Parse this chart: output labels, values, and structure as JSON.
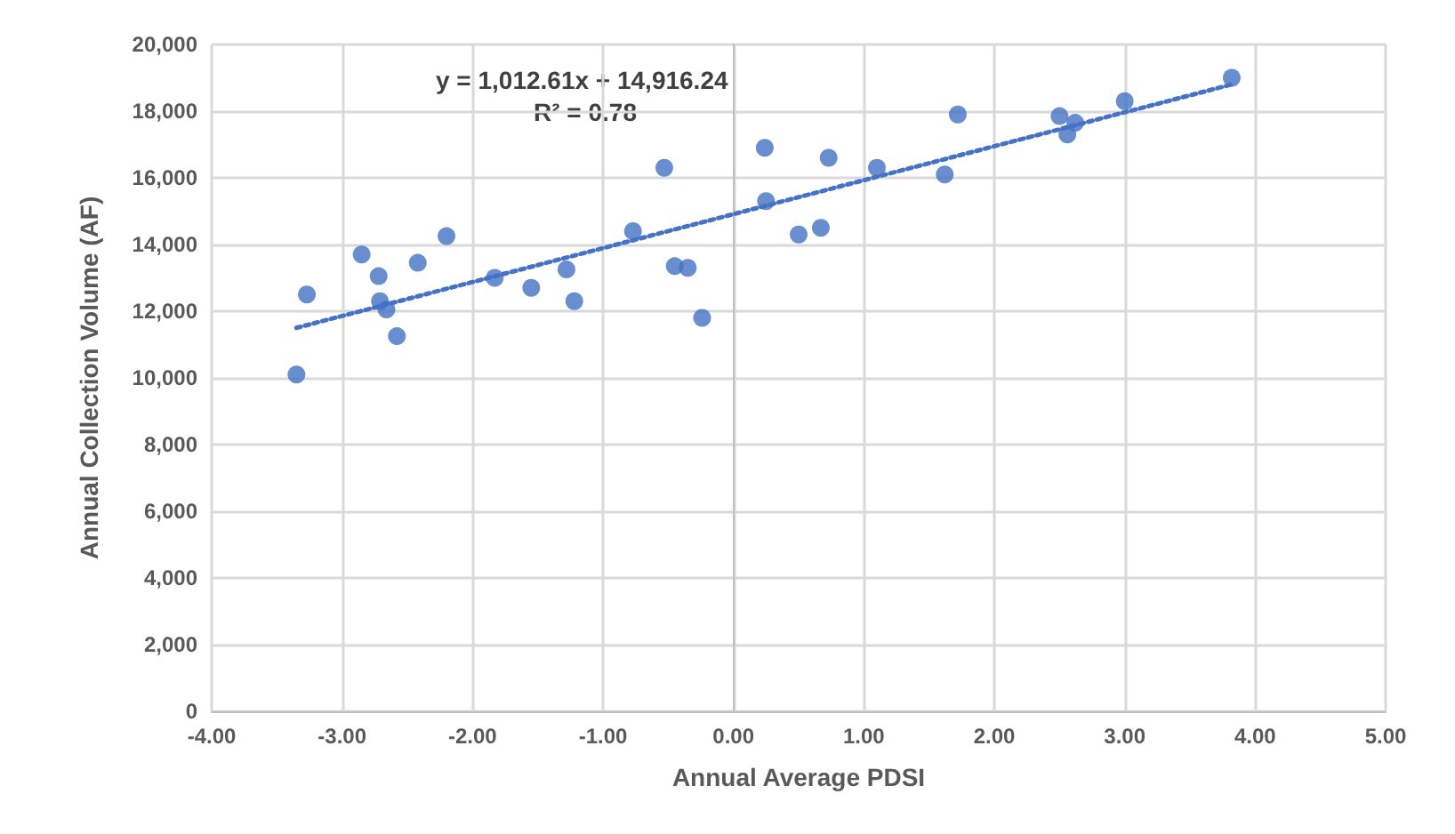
{
  "chart_data": {
    "type": "scatter",
    "xlabel": "Annual Average PDSI",
    "ylabel": "Annual Collection Volume (AF)",
    "annotations": [
      "y = 1,012.61x + 14,916.24",
      "R² = 0.78"
    ],
    "xlim": [
      -4,
      5
    ],
    "xticks": [
      {
        "value": -4,
        "label": "-4.00"
      },
      {
        "value": -3,
        "label": "-3.00"
      },
      {
        "value": -2,
        "label": "-2.00"
      },
      {
        "value": -1,
        "label": "-1.00"
      },
      {
        "value": 0,
        "label": "0.00"
      },
      {
        "value": 1,
        "label": "1.00"
      },
      {
        "value": 2,
        "label": "2.00"
      },
      {
        "value": 3,
        "label": "3.00"
      },
      {
        "value": 4,
        "label": "4.00"
      },
      {
        "value": 5,
        "label": "5.00"
      }
    ],
    "ylim": [
      0,
      20000
    ],
    "yticks": [
      {
        "value": 0,
        "label": "0"
      },
      {
        "value": 2000,
        "label": "2,000"
      },
      {
        "value": 4000,
        "label": "4,000"
      },
      {
        "value": 6000,
        "label": "6,000"
      },
      {
        "value": 8000,
        "label": "8,000"
      },
      {
        "value": 10000,
        "label": "10,000"
      },
      {
        "value": 12000,
        "label": "12,000"
      },
      {
        "value": 14000,
        "label": "14,000"
      },
      {
        "value": 16000,
        "label": "16,000"
      },
      {
        "value": 18000,
        "label": "18,000"
      },
      {
        "value": 20000,
        "label": "20,000"
      }
    ],
    "grid": true,
    "marker": "circle",
    "series": [
      {
        "color": "#4472c4",
        "x": [
          -3.35,
          -3.27,
          -2.85,
          -2.72,
          -2.71,
          -2.66,
          -2.58,
          -2.42,
          -2.2,
          -1.83,
          -1.55,
          -1.28,
          -1.22,
          -0.77,
          -0.53,
          -0.45,
          -0.35,
          -0.24,
          0.24,
          0.25,
          0.5,
          0.67,
          0.73,
          1.1,
          1.62,
          1.72,
          2.5,
          2.56,
          2.62,
          3.0,
          3.82
        ],
        "values": [
          10100,
          12500,
          13700,
          13050,
          12300,
          12050,
          11250,
          13450,
          14250,
          13000,
          12700,
          13250,
          12300,
          14400,
          16300,
          13350,
          13300,
          11800,
          16900,
          15300,
          14300,
          14500,
          16600,
          16300,
          16100,
          17900,
          17850,
          17300,
          17650,
          18300,
          19000
        ]
      },
      {
        "type": "line",
        "color": "#4472c4",
        "line_style": "dotted",
        "marker": "none",
        "x": [
          -3.35,
          3.82
        ],
        "values": [
          11500,
          18800
        ]
      }
    ]
  }
}
